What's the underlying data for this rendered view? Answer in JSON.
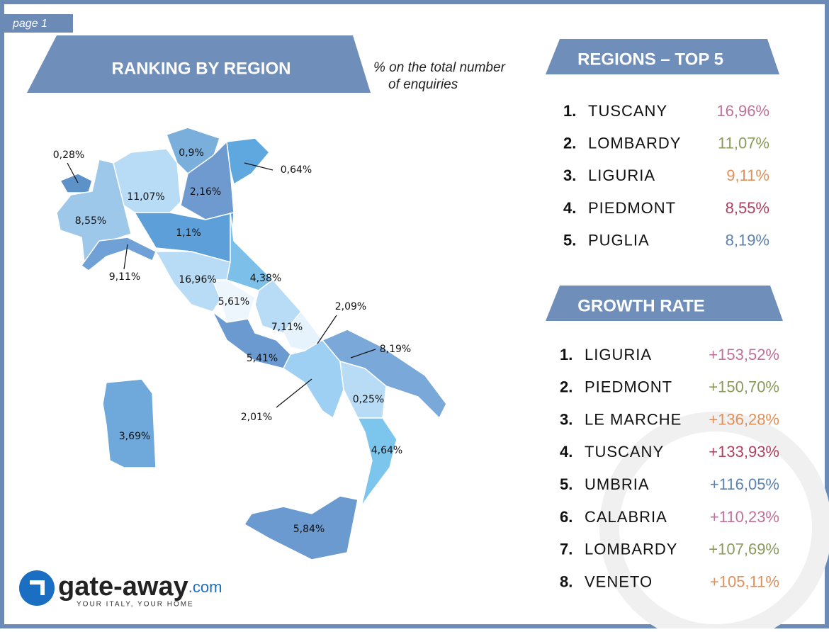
{
  "page_label": "page 1",
  "title": "RANKING BY REGION",
  "subtitle": [
    "% on the total number",
    "of enquiries"
  ],
  "map": {
    "labels": [
      "0,28%",
      "0,9%",
      "0,64%",
      "11,07%",
      "2,16%",
      "8,55%",
      "1,1%",
      "9,11%",
      "16,96%",
      "4,38%",
      "5,61%",
      "2,09%",
      "7,11%",
      "8,19%",
      "5,41%",
      "0,25%",
      "2,01%",
      "3,69%",
      "4,64%",
      "5,84%"
    ]
  },
  "top5": {
    "title": "REGIONS – TOP 5",
    "rows": [
      {
        "rank": "1.",
        "name": "TUSCANY",
        "value": "16,96%",
        "color": "#c0709a"
      },
      {
        "rank": "2.",
        "name": "LOMBARDY",
        "value": "11,07%",
        "color": "#8a9a5b"
      },
      {
        "rank": "3.",
        "name": "LIGURIA",
        "value": "9,11%",
        "color": "#e0905a"
      },
      {
        "rank": "4.",
        "name": "PIEDMONT",
        "value": "8,55%",
        "color": "#b04060"
      },
      {
        "rank": "5.",
        "name": "PUGLIA",
        "value": "8,19%",
        "color": "#5b82b0"
      }
    ]
  },
  "growth": {
    "title": "GROWTH RATE",
    "rows": [
      {
        "rank": "1.",
        "name": "LIGURIA",
        "value": "+153,52%",
        "color": "#c0709a"
      },
      {
        "rank": "2.",
        "name": "PIEDMONT",
        "value": "+150,70%",
        "color": "#8a9a5b"
      },
      {
        "rank": "3.",
        "name": "LE MARCHE",
        "value": "+136,28%",
        "color": "#e0905a"
      },
      {
        "rank": "4.",
        "name": "TUSCANY",
        "value": "+133,93%",
        "color": "#b04060"
      },
      {
        "rank": "5.",
        "name": "UMBRIA",
        "value": "+116,05%",
        "color": "#5b82b0"
      },
      {
        "rank": "6.",
        "name": "CALABRIA",
        "value": "+110,23%",
        "color": "#c0709a"
      },
      {
        "rank": "7.",
        "name": "LOMBARDY",
        "value": "+107,69%",
        "color": "#8a9a5b"
      },
      {
        "rank": "8.",
        "name": "VENETO",
        "value": "+105,11%",
        "color": "#e0905a"
      }
    ]
  },
  "logo": {
    "name": "gate-away",
    "domain": ".com",
    "tagline": "YOUR ITALY, YOUR HOME"
  }
}
